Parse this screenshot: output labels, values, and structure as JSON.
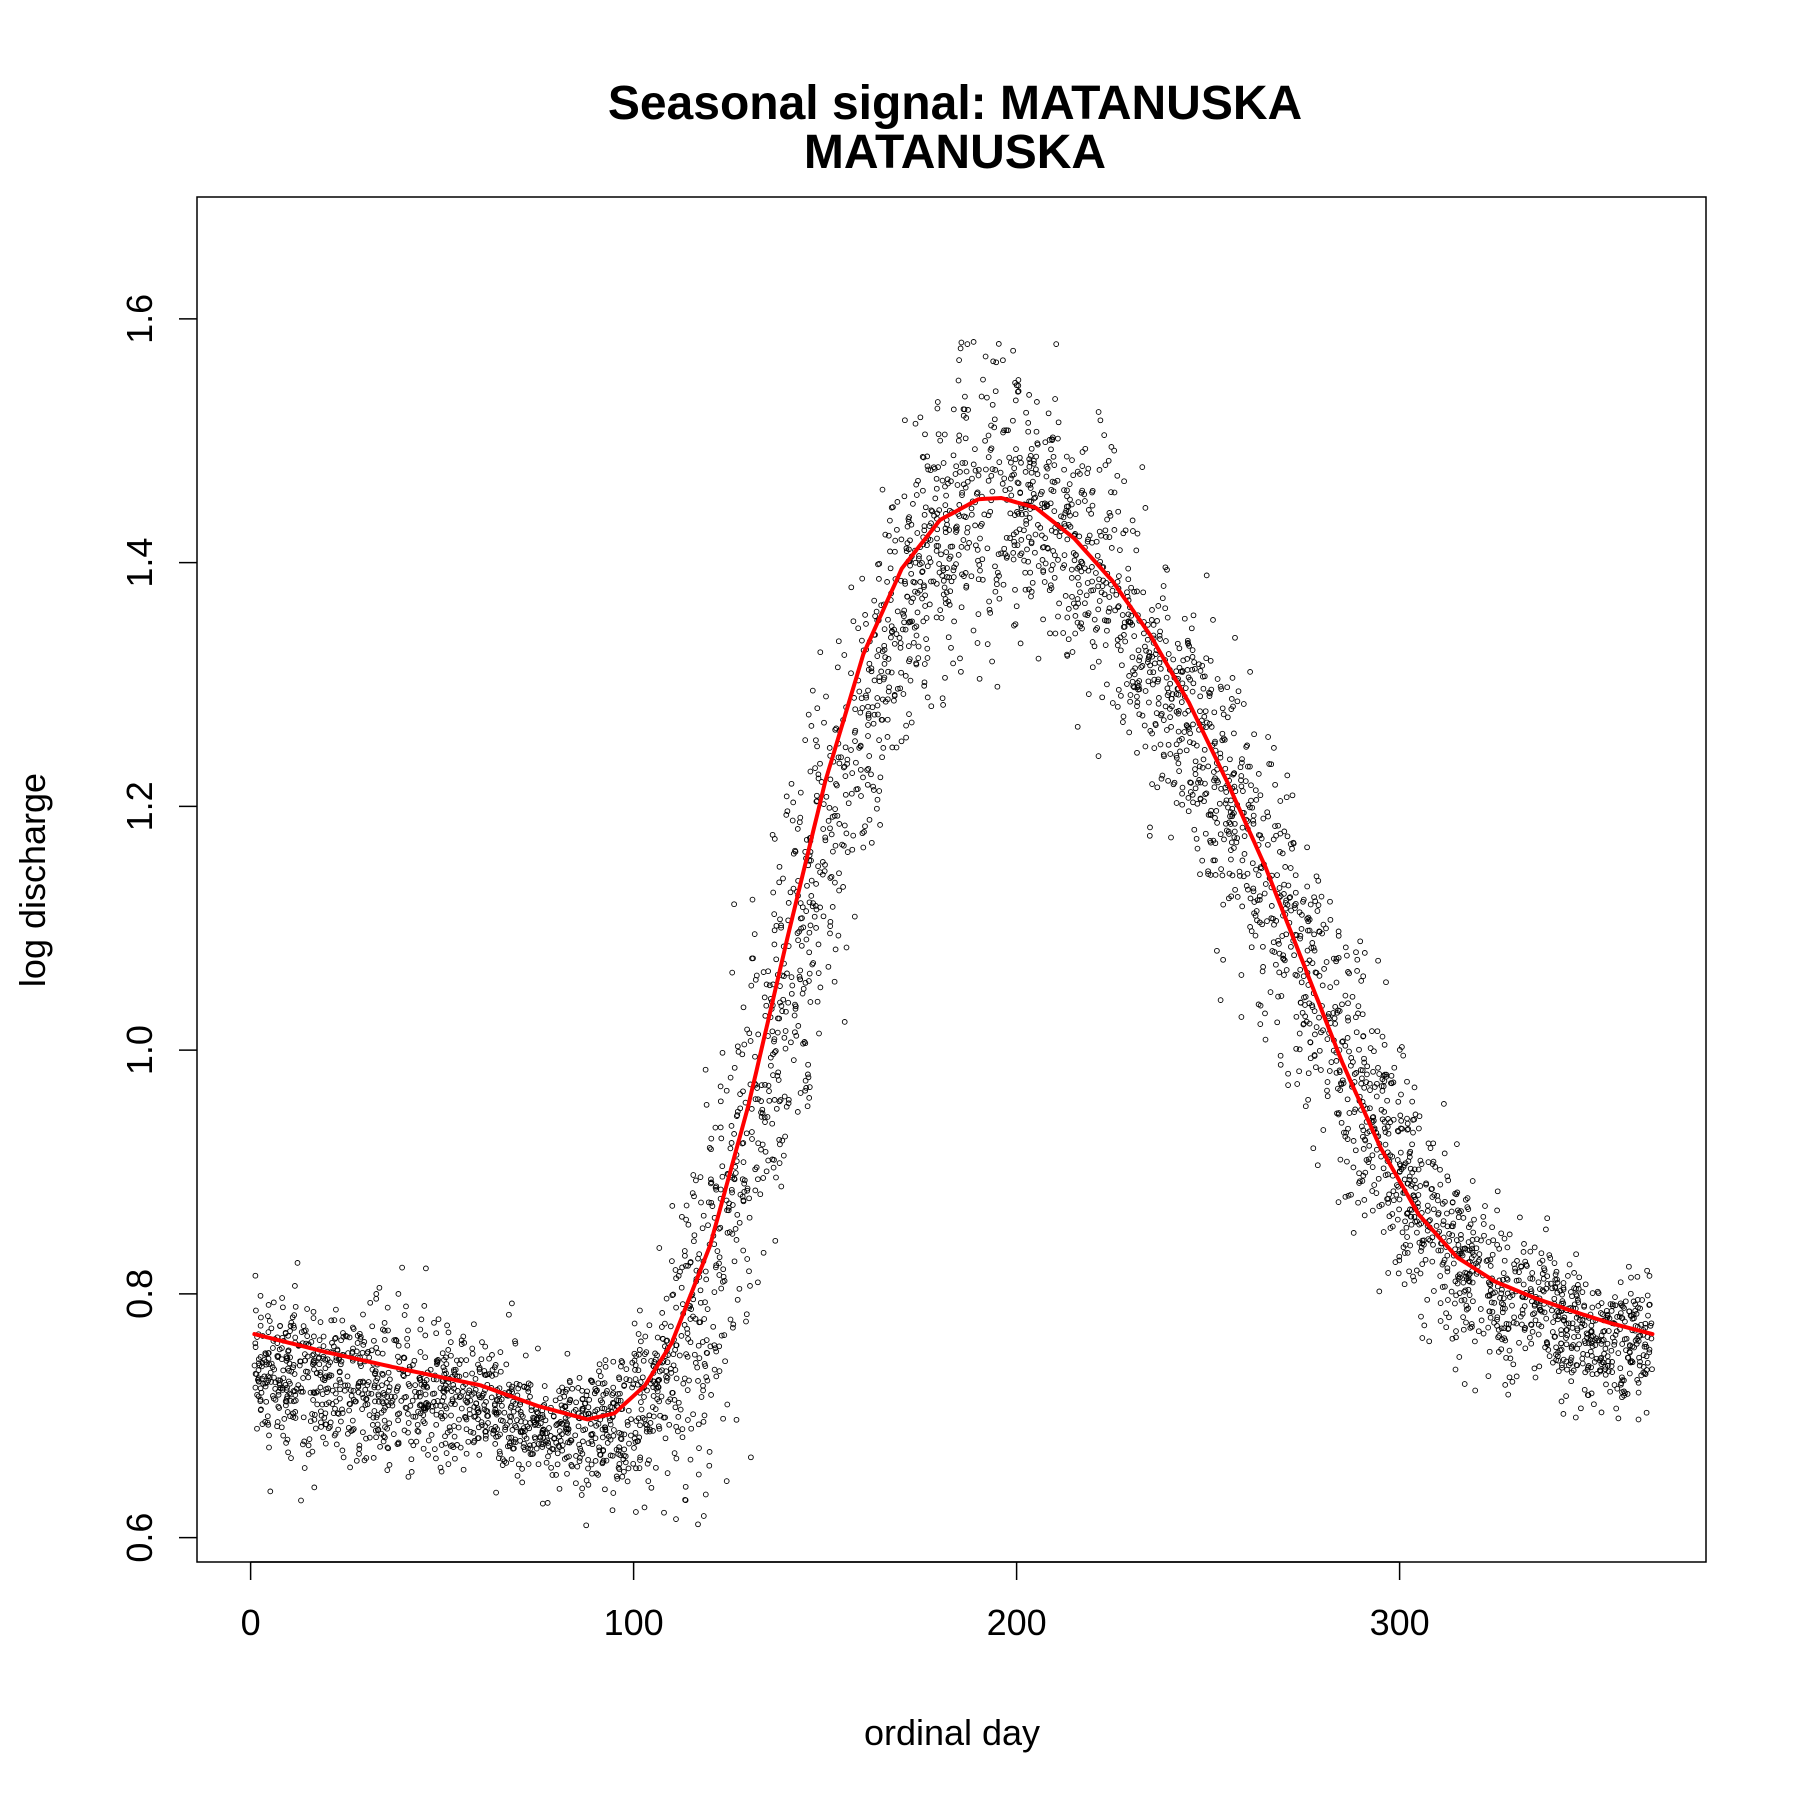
{
  "chart_data": {
    "type": "scatter",
    "title": "Seasonal signal: MATANUSKA",
    "subtitle": "MATANUSKA",
    "xlabel": "ordinal day",
    "ylabel": "log discharge",
    "xlim": [
      -14,
      380
    ],
    "ylim": [
      0.58,
      1.7
    ],
    "x_ticks": [
      0,
      100,
      200,
      300
    ],
    "y_ticks": [
      0.6,
      0.8,
      1.0,
      1.2,
      1.4,
      1.6
    ],
    "grid": false,
    "legend": "none",
    "colors": {
      "points": "#000000",
      "smooth": "#ff0000"
    },
    "series": [
      {
        "kind": "points",
        "description_envelope": {
          "x": [
            1,
            20,
            40,
            60,
            80,
            95,
            105,
            115,
            125,
            135,
            145,
            155,
            165,
            175,
            185,
            195,
            205,
            215,
            225,
            235,
            245,
            255,
            265,
            275,
            285,
            295,
            305,
            315,
            325,
            335,
            345,
            355,
            366
          ],
          "y_center": [
            0.74,
            0.73,
            0.72,
            0.71,
            0.69,
            0.69,
            0.71,
            0.77,
            0.86,
            0.98,
            1.1,
            1.22,
            1.32,
            1.4,
            1.44,
            1.45,
            1.44,
            1.41,
            1.37,
            1.32,
            1.27,
            1.21,
            1.14,
            1.07,
            1.0,
            0.93,
            0.87,
            0.83,
            0.8,
            0.79,
            0.77,
            0.76,
            0.76
          ],
          "y_spread": [
            0.05,
            0.06,
            0.06,
            0.05,
            0.04,
            0.05,
            0.07,
            0.12,
            0.14,
            0.14,
            0.13,
            0.12,
            0.11,
            0.1,
            0.1,
            0.1,
            0.09,
            0.09,
            0.09,
            0.09,
            0.09,
            0.1,
            0.1,
            0.1,
            0.1,
            0.09,
            0.08,
            0.07,
            0.06,
            0.05,
            0.05,
            0.05,
            0.05
          ]
        },
        "n_points": 4500
      },
      {
        "kind": "smooth",
        "x": [
          1,
          20,
          40,
          60,
          75,
          88,
          95,
          103,
          110,
          120,
          130,
          140,
          150,
          160,
          170,
          180,
          190,
          196,
          205,
          215,
          225,
          235,
          245,
          255,
          265,
          275,
          285,
          295,
          305,
          315,
          325,
          335,
          345,
          355,
          366
        ],
        "y": [
          0.767,
          0.752,
          0.738,
          0.725,
          0.708,
          0.697,
          0.702,
          0.725,
          0.76,
          0.84,
          0.955,
          1.09,
          1.22,
          1.325,
          1.395,
          1.435,
          1.452,
          1.453,
          1.445,
          1.42,
          1.385,
          1.34,
          1.285,
          1.22,
          1.15,
          1.07,
          0.99,
          0.92,
          0.865,
          0.83,
          0.81,
          0.797,
          0.786,
          0.776,
          0.767
        ]
      }
    ]
  }
}
